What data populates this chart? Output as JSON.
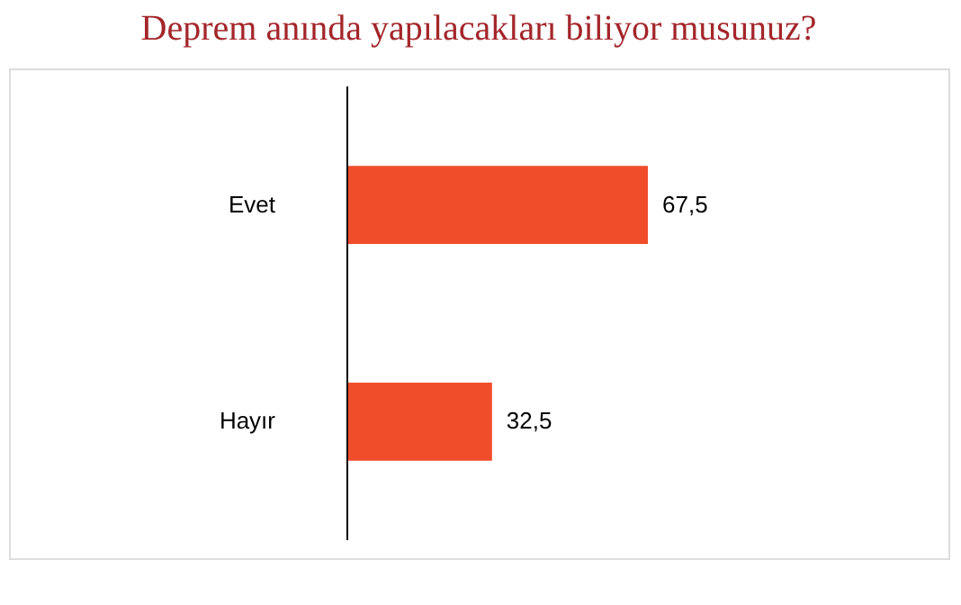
{
  "chart_data": {
    "type": "bar",
    "orientation": "horizontal",
    "title": "Deprem anında yapılacakları biliyor musunuz?",
    "categories": [
      "Evet",
      "Hayır"
    ],
    "values": [
      67.5,
      32.5
    ],
    "value_labels": [
      "67,5",
      "32,5"
    ],
    "color": "#f04e2b"
  }
}
